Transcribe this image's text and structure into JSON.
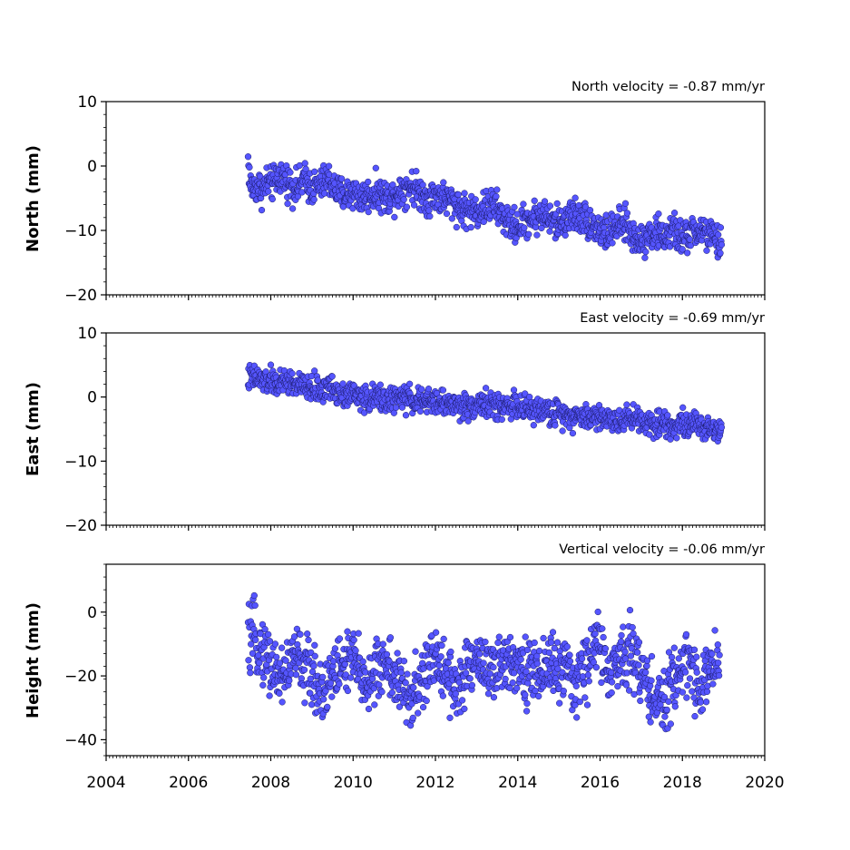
{
  "figure": {
    "marker_fill": "#5555ff",
    "marker_edge": "#1a1a66",
    "frame_color": "#000000",
    "background": "#ffffff"
  },
  "chart_data": [
    {
      "type": "scatter",
      "title": "North velocity = -0.87 mm/yr",
      "xlabel": "",
      "ylabel": "North (mm)",
      "xlim": [
        2004,
        2020
      ],
      "ylim": [
        -20,
        10
      ],
      "xticks": [
        2004,
        2006,
        2008,
        2010,
        2012,
        2014,
        2016,
        2018,
        2020
      ],
      "xtick_labels_visible": false,
      "yticks": [
        -20,
        -10,
        0,
        10
      ],
      "ytick_labels": [
        "−20",
        "−10",
        "0",
        "10"
      ],
      "grid": false,
      "series": [
        {
          "x": [
            2007.45,
            2007.5,
            2007.6,
            2007.7,
            2007.8,
            2007.9,
            2008.0,
            2008.1,
            2008.2,
            2008.35,
            2008.5,
            2008.65,
            2008.8,
            2009.0,
            2009.2,
            2009.4,
            2009.6,
            2009.8,
            2010.0,
            2010.2,
            2010.4,
            2010.6,
            2010.8,
            2011.0,
            2011.2,
            2011.4,
            2011.6,
            2011.8,
            2012.0,
            2012.2,
            2012.4,
            2012.6,
            2012.8,
            2013.0,
            2013.2,
            2013.4,
            2013.6,
            2013.8,
            2014.0,
            2014.2,
            2014.4,
            2014.6,
            2014.8,
            2015.0,
            2015.2,
            2015.4,
            2015.6,
            2015.8,
            2016.0,
            2016.2,
            2016.4,
            2016.6,
            2016.8,
            2017.0,
            2017.2,
            2017.4,
            2017.6,
            2017.8,
            2018.0,
            2018.2,
            2018.4,
            2018.6,
            2018.8,
            2018.95
          ],
          "y": [
            1.0,
            -3.0,
            -3.5,
            -3.0,
            -4.0,
            -2.5,
            -3.0,
            -2.5,
            -1.5,
            -2.0,
            -3.0,
            -3.5,
            -2.0,
            -3.5,
            -3.0,
            -2.0,
            -4.0,
            -4.5,
            -4.0,
            -5.0,
            -4.5,
            -4.0,
            -5.0,
            -4.5,
            -3.5,
            -3.0,
            -4.0,
            -5.0,
            -4.5,
            -5.0,
            -5.5,
            -6.5,
            -7.0,
            -7.0,
            -6.5,
            -6.0,
            -7.5,
            -9.0,
            -9.5,
            -8.5,
            -8.0,
            -7.5,
            -8.5,
            -9.0,
            -8.0,
            -7.5,
            -8.0,
            -9.0,
            -10.0,
            -10.5,
            -9.5,
            -9.0,
            -11.0,
            -11.5,
            -10.5,
            -10.5,
            -11.0,
            -10.0,
            -11.5,
            -10.5,
            -10.0,
            -10.5,
            -11.5,
            -12.5
          ]
        }
      ]
    },
    {
      "type": "scatter",
      "title": "East velocity = -0.69 mm/yr",
      "xlabel": "",
      "ylabel": "East (mm)",
      "xlim": [
        2004,
        2020
      ],
      "ylim": [
        -20,
        10
      ],
      "xticks": [
        2004,
        2006,
        2008,
        2010,
        2012,
        2014,
        2016,
        2018,
        2020
      ],
      "xtick_labels_visible": false,
      "yticks": [
        -20,
        -10,
        0,
        10
      ],
      "ytick_labels": [
        "−20",
        "−10",
        "0",
        "10"
      ],
      "grid": false,
      "series": [
        {
          "x": [
            2007.45,
            2007.6,
            2007.8,
            2008.0,
            2008.2,
            2008.4,
            2008.6,
            2008.8,
            2009.0,
            2009.2,
            2009.4,
            2009.6,
            2009.8,
            2010.0,
            2010.2,
            2010.4,
            2010.6,
            2010.8,
            2011.0,
            2011.2,
            2011.4,
            2011.6,
            2011.8,
            2012.0,
            2012.2,
            2012.4,
            2012.6,
            2012.8,
            2013.0,
            2013.2,
            2013.4,
            2013.6,
            2013.8,
            2014.0,
            2014.2,
            2014.4,
            2014.6,
            2014.8,
            2015.0,
            2015.2,
            2015.4,
            2015.6,
            2015.8,
            2016.0,
            2016.2,
            2016.4,
            2016.6,
            2016.8,
            2017.0,
            2017.2,
            2017.4,
            2017.6,
            2017.8,
            2018.0,
            2018.2,
            2018.4,
            2018.6,
            2018.8,
            2018.95
          ],
          "y": [
            3.0,
            3.0,
            2.5,
            2.5,
            2.0,
            2.5,
            2.0,
            1.5,
            1.5,
            1.0,
            1.5,
            1.0,
            0.5,
            0.5,
            0.0,
            -0.5,
            0.0,
            -0.5,
            -0.5,
            0.0,
            -0.5,
            -0.5,
            -1.0,
            -0.5,
            -1.0,
            -1.0,
            -1.5,
            -1.5,
            -1.0,
            -1.0,
            -1.5,
            -1.5,
            -1.0,
            -1.5,
            -2.0,
            -2.0,
            -2.0,
            -2.5,
            -2.5,
            -2.5,
            -3.0,
            -3.0,
            -3.0,
            -3.0,
            -3.5,
            -3.5,
            -3.5,
            -3.0,
            -3.5,
            -4.0,
            -4.0,
            -4.0,
            -4.5,
            -4.0,
            -4.5,
            -4.5,
            -4.5,
            -5.0,
            -5.0
          ]
        }
      ]
    },
    {
      "type": "scatter",
      "title": "Vertical velocity = -0.06 mm/yr",
      "xlabel": "",
      "ylabel": "Height (mm)",
      "xlim": [
        2004,
        2020
      ],
      "ylim": [
        -45,
        15
      ],
      "xticks": [
        2004,
        2006,
        2008,
        2010,
        2012,
        2014,
        2016,
        2018,
        2020
      ],
      "xtick_labels": [
        "2004",
        "2006",
        "2008",
        "2010",
        "2012",
        "2014",
        "2016",
        "2018",
        "2020"
      ],
      "xtick_labels_visible": true,
      "yticks": [
        -40,
        -20,
        0
      ],
      "ytick_labels": [
        "−40",
        "−20",
        "0"
      ],
      "grid": false,
      "series": [
        {
          "x": [
            2007.45,
            2007.6,
            2007.8,
            2008.0,
            2008.2,
            2008.4,
            2008.6,
            2008.8,
            2009.0,
            2009.2,
            2009.4,
            2009.6,
            2009.8,
            2010.0,
            2010.2,
            2010.4,
            2010.6,
            2010.8,
            2011.0,
            2011.2,
            2011.4,
            2011.6,
            2011.8,
            2012.0,
            2012.2,
            2012.4,
            2012.6,
            2012.8,
            2013.0,
            2013.2,
            2013.4,
            2013.6,
            2013.8,
            2014.0,
            2014.2,
            2014.4,
            2014.6,
            2014.8,
            2015.2,
            2015.4,
            2015.6,
            2015.8,
            2016.0,
            2016.2,
            2016.5,
            2016.7,
            2016.9,
            2017.1,
            2017.3,
            2017.5,
            2017.7,
            2017.9,
            2018.1,
            2018.3,
            2018.5,
            2018.7,
            2018.9
          ],
          "y": [
            -10,
            -8,
            -12,
            -16,
            -20,
            -18,
            -13,
            -17,
            -20,
            -24,
            -22,
            -18,
            -16,
            -15,
            -20,
            -22,
            -18,
            -15,
            -20,
            -25,
            -27,
            -24,
            -18,
            -15,
            -16,
            -22,
            -24,
            -18,
            -14,
            -16,
            -20,
            -17,
            -14,
            -15,
            -18,
            -20,
            -18,
            -16,
            -20,
            -23,
            -18,
            -13,
            -8,
            -22,
            -14,
            -10,
            -16,
            -22,
            -26,
            -30,
            -25,
            -18,
            -15,
            -20,
            -23,
            -18,
            -15
          ]
        }
      ]
    }
  ]
}
